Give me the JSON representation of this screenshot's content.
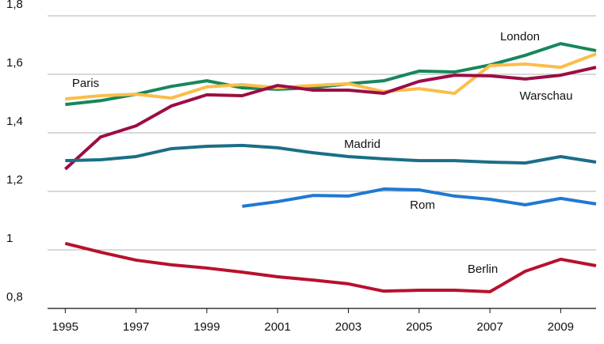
{
  "chart_data": {
    "type": "line",
    "x": [
      1995,
      1996,
      1997,
      1998,
      1999,
      2000,
      2001,
      2002,
      2003,
      2004,
      2005,
      2006,
      2007,
      2008,
      2009,
      2010
    ],
    "series": [
      {
        "name": "London",
        "color": "#16875c",
        "values": [
          1.497,
          1.51,
          1.532,
          1.559,
          1.578,
          1.554,
          1.549,
          1.554,
          1.568,
          1.578,
          1.611,
          1.608,
          1.632,
          1.665,
          1.705,
          1.681
        ]
      },
      {
        "name": "Paris",
        "color": "#fbbd4a",
        "values": [
          1.516,
          1.527,
          1.532,
          1.519,
          1.557,
          1.565,
          1.554,
          1.562,
          1.568,
          1.541,
          1.551,
          1.535,
          1.63,
          1.635,
          1.624,
          1.67
        ]
      },
      {
        "name": "Warschau",
        "color": "#9c0d45",
        "values": [
          1.276,
          1.386,
          1.424,
          1.492,
          1.53,
          1.527,
          1.562,
          1.546,
          1.546,
          1.535,
          1.576,
          1.597,
          1.595,
          1.584,
          1.597,
          1.624
        ]
      },
      {
        "name": "Madrid",
        "color": "#1b6e87",
        "values": [
          1.305,
          1.308,
          1.319,
          1.346,
          1.354,
          1.357,
          1.349,
          1.332,
          1.319,
          1.311,
          1.305,
          1.305,
          1.3,
          1.297,
          1.319,
          1.3
        ]
      },
      {
        "name": "Rom",
        "color": "#1f79d2",
        "values": [
          null,
          null,
          null,
          null,
          null,
          1.149,
          1.165,
          1.186,
          1.184,
          1.208,
          1.205,
          1.184,
          1.173,
          1.154,
          1.176,
          1.157
        ]
      },
      {
        "name": "Berlin",
        "color": "#b8112c",
        "values": [
          1.022,
          0.992,
          0.965,
          0.949,
          0.938,
          0.924,
          0.908,
          0.897,
          0.884,
          0.859,
          0.862,
          0.862,
          0.857,
          0.927,
          0.968,
          0.946
        ]
      }
    ],
    "xlim": [
      1994.5,
      2010
    ],
    "xticks": [
      1995,
      1997,
      1999,
      2001,
      2003,
      2005,
      2007,
      2009
    ],
    "ylim": [
      0.8,
      1.8
    ],
    "yticks": [
      {
        "value": 0.8,
        "label": "0,8"
      },
      1,
      {
        "value": 1.2,
        "label": "1,2"
      },
      {
        "value": 1.4,
        "label": "1,4"
      },
      {
        "value": 1.6,
        "label": "1,6"
      },
      {
        "value": 1.8,
        "label": "1,8"
      }
    ],
    "grid": true
  }
}
